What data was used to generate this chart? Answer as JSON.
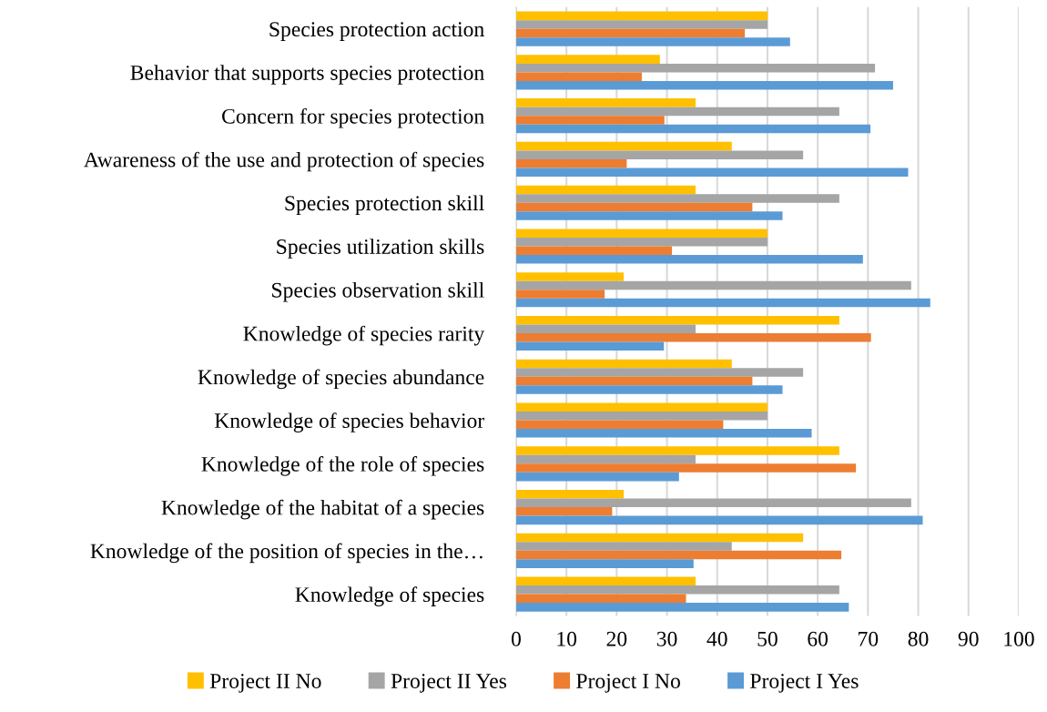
{
  "chart_data": {
    "type": "bar",
    "orientation": "horizontal",
    "categories": [
      "Species protection action",
      "Behavior that supports species protection",
      "Concern for species protection",
      "Awareness of the use and protection of species",
      "Species protection skill",
      "Species utilization skills",
      "Species observation skill",
      "Knowledge of species rarity",
      "Knowledge of species abundance",
      "Knowledge of species behavior",
      "Knowledge of the role of species",
      "Knowledge of the habitat of a species",
      "Knowledge of the position of species in the…",
      "Knowledge of species"
    ],
    "series": [
      {
        "name": "Project II No",
        "color": "#ffc000",
        "values": [
          50,
          28.6,
          35.7,
          42.9,
          35.7,
          50,
          21.4,
          64.3,
          42.9,
          50,
          64.3,
          21.4,
          57.1,
          35.7
        ]
      },
      {
        "name": "Project II Yes",
        "color": "#a5a5a5",
        "values": [
          50,
          71.4,
          64.3,
          57.1,
          64.3,
          50,
          78.6,
          35.7,
          57.1,
          50,
          35.7,
          78.6,
          42.9,
          64.3
        ]
      },
      {
        "name": "Project I No",
        "color": "#ed7d31",
        "values": [
          45.5,
          25,
          29.5,
          22,
          47,
          31,
          17.6,
          70.6,
          47,
          41.2,
          67.6,
          19.1,
          64.7,
          33.8
        ]
      },
      {
        "name": "Project I Yes",
        "color": "#5b9bd5",
        "values": [
          54.5,
          75,
          70.5,
          78,
          53,
          69,
          82.4,
          29.4,
          53,
          58.8,
          32.4,
          80.9,
          35.3,
          66.2
        ]
      }
    ],
    "xlim": [
      0,
      100
    ],
    "xticks": [
      0,
      10,
      20,
      30,
      40,
      50,
      60,
      70,
      80,
      90,
      100
    ],
    "grid": "x",
    "legend": "bottom"
  }
}
